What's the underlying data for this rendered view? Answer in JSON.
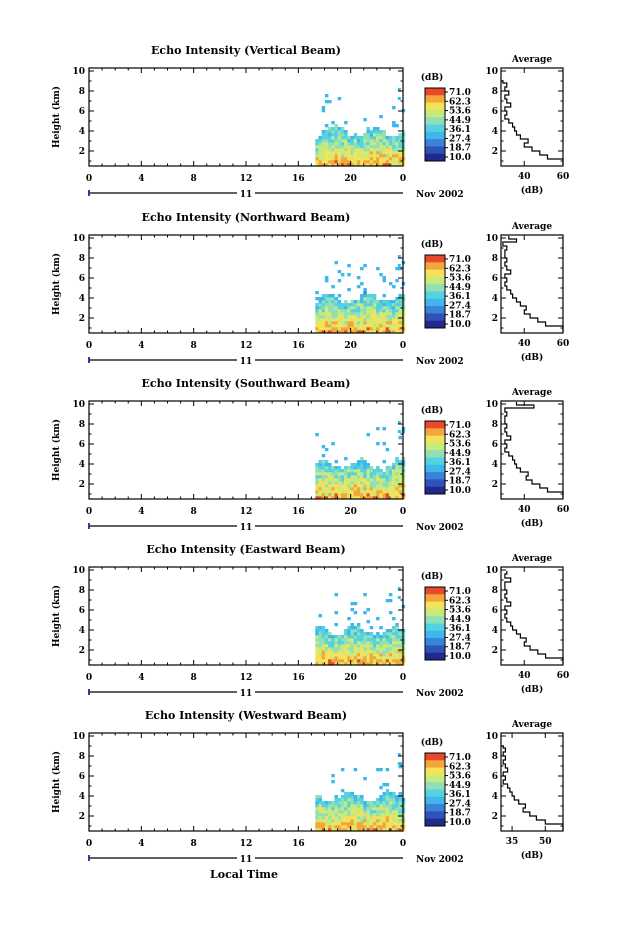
{
  "chart_data": [
    {
      "type": "heatmap",
      "title": "Echo Intensity (Vertical Beam)",
      "ylabel": "Height (km)",
      "x_ticks": [
        "0",
        "4",
        "8",
        "12",
        "16",
        "20",
        "0"
      ],
      "x_range": [
        0,
        24
      ],
      "y_ticks": [
        "2",
        "4",
        "6",
        "8",
        "10"
      ],
      "y_range": [
        0.5,
        10.3
      ],
      "date_label": "11",
      "date_right": "Nov 2002",
      "data_start_hour": 17.3,
      "colorbar": {
        "unit": "(dB)",
        "ticks": [
          "71.0",
          "62.3",
          "53.6",
          "44.9",
          "36.1",
          "27.4",
          "18.7",
          "10.0"
        ]
      },
      "profile": {
        "title": "Average",
        "xlabel": "(dB)",
        "x_ticks": [
          "40",
          "60"
        ],
        "x_range": [
          28,
          60
        ],
        "y_ticks": [
          "2",
          "4",
          "6",
          "8",
          "10"
        ],
        "heights": [
          0.6,
          1.2,
          1.6,
          2.0,
          2.4,
          2.8,
          3.2,
          3.6,
          4.0,
          4.4,
          4.8,
          5.2,
          5.6,
          6.0,
          6.4,
          6.8,
          7.2,
          7.6,
          8.0,
          8.4,
          8.8
        ],
        "values": [
          60,
          52,
          48,
          44,
          40,
          42,
          38,
          36,
          35,
          34,
          32,
          30,
          31,
          30,
          33,
          31,
          30,
          32,
          30,
          31,
          29
        ]
      }
    },
    {
      "type": "heatmap",
      "title": "Echo Intensity (Northward Beam)",
      "ylabel": "Height (km)",
      "x_ticks": [
        "0",
        "4",
        "8",
        "12",
        "16",
        "20",
        "0"
      ],
      "x_range": [
        0,
        24
      ],
      "y_ticks": [
        "2",
        "4",
        "6",
        "8",
        "10"
      ],
      "y_range": [
        0.5,
        10.3
      ],
      "date_label": "11",
      "date_right": "Nov 2002",
      "data_start_hour": 17.3,
      "colorbar": {
        "unit": "(dB)",
        "ticks": [
          "71.0",
          "62.3",
          "53.6",
          "44.9",
          "36.1",
          "27.4",
          "18.7",
          "10.0"
        ]
      },
      "profile": {
        "title": "Average",
        "xlabel": "(dB)",
        "x_ticks": [
          "40",
          "60"
        ],
        "x_range": [
          28,
          60
        ],
        "y_ticks": [
          "2",
          "4",
          "6",
          "8",
          "10"
        ],
        "heights": [
          0.6,
          1.2,
          1.6,
          2.0,
          2.4,
          2.8,
          3.2,
          3.6,
          4.0,
          4.4,
          4.8,
          5.2,
          5.6,
          6.0,
          6.4,
          6.8,
          7.2,
          7.6,
          8.0,
          8.4,
          8.8,
          9.2,
          9.6,
          9.9
        ],
        "values": [
          60,
          51,
          47,
          43,
          40,
          41,
          38,
          36,
          34,
          33,
          31,
          30,
          31,
          30,
          33,
          31,
          30,
          31,
          30,
          30,
          31,
          29,
          36,
          32
        ]
      }
    },
    {
      "type": "heatmap",
      "title": "Echo Intensity (Southward Beam)",
      "ylabel": "Height (km)",
      "x_ticks": [
        "0",
        "4",
        "8",
        "12",
        "16",
        "20",
        "0"
      ],
      "x_range": [
        0,
        24
      ],
      "y_ticks": [
        "2",
        "4",
        "6",
        "8",
        "10"
      ],
      "y_range": [
        0.5,
        10.3
      ],
      "date_label": "11",
      "date_right": "Nov 2002",
      "data_start_hour": 17.3,
      "colorbar": {
        "unit": "(dB)",
        "ticks": [
          "71.0",
          "62.3",
          "53.6",
          "44.9",
          "36.1",
          "27.4",
          "18.7",
          "10.0"
        ]
      },
      "profile": {
        "title": "Average",
        "xlabel": "(dB)",
        "x_ticks": [
          "40",
          "60"
        ],
        "x_range": [
          28,
          60
        ],
        "y_ticks": [
          "2",
          "4",
          "6",
          "8",
          "10"
        ],
        "heights": [
          0.6,
          1.2,
          1.6,
          2.0,
          2.4,
          2.8,
          3.2,
          3.6,
          4.0,
          4.4,
          4.8,
          5.2,
          5.6,
          6.0,
          6.4,
          6.8,
          7.2,
          7.6,
          8.0,
          8.4,
          8.8,
          9.2,
          9.6,
          9.9
        ],
        "values": [
          60,
          52,
          48,
          44,
          41,
          42,
          38,
          36,
          35,
          34,
          32,
          30,
          31,
          30,
          33,
          31,
          30,
          31,
          30,
          30,
          31,
          30,
          45,
          36
        ]
      }
    },
    {
      "type": "heatmap",
      "title": "Echo Intensity (Eastward Beam)",
      "ylabel": "Height (km)",
      "x_ticks": [
        "0",
        "4",
        "8",
        "12",
        "16",
        "20",
        "0"
      ],
      "x_range": [
        0,
        24
      ],
      "y_ticks": [
        "2",
        "4",
        "6",
        "8",
        "10"
      ],
      "y_range": [
        0.5,
        10.3
      ],
      "date_label": "11",
      "date_right": "Nov 2002",
      "data_start_hour": 17.3,
      "colorbar": {
        "unit": "(dB)",
        "ticks": [
          "71.0",
          "62.3",
          "53.6",
          "44.9",
          "36.1",
          "27.4",
          "18.7",
          "10.0"
        ]
      },
      "profile": {
        "title": "Average",
        "xlabel": "(dB)",
        "x_ticks": [
          "40",
          "60"
        ],
        "x_range": [
          28,
          60
        ],
        "y_ticks": [
          "2",
          "4",
          "6",
          "8",
          "10"
        ],
        "heights": [
          0.6,
          1.2,
          1.6,
          2.0,
          2.4,
          2.8,
          3.2,
          3.6,
          4.0,
          4.4,
          4.8,
          5.2,
          5.6,
          6.0,
          6.4,
          6.8,
          7.2,
          7.6,
          8.0,
          8.4,
          8.8,
          9.2,
          9.6
        ],
        "values": [
          60,
          51,
          47,
          43,
          40,
          41,
          38,
          36,
          34,
          33,
          31,
          30,
          31,
          30,
          33,
          31,
          30,
          31,
          30,
          30,
          33,
          30,
          31
        ]
      }
    },
    {
      "type": "heatmap",
      "title": "Echo Intensity (Westward Beam)",
      "ylabel": "Height (km)",
      "x_ticks": [
        "0",
        "4",
        "8",
        "12",
        "16",
        "20",
        "0"
      ],
      "x_range": [
        0,
        24
      ],
      "y_ticks": [
        "2",
        "4",
        "6",
        "8",
        "10"
      ],
      "y_range": [
        0.5,
        10.3
      ],
      "date_label": "11",
      "date_right": "Nov 2002",
      "data_start_hour": 17.3,
      "colorbar": {
        "unit": "(dB)",
        "ticks": [
          "71.0",
          "62.3",
          "53.6",
          "44.9",
          "36.1",
          "27.4",
          "18.7",
          "10.0"
        ]
      },
      "profile": {
        "title": "Average",
        "xlabel": "(dB)",
        "x_ticks": [
          "35",
          "50"
        ],
        "x_range": [
          30,
          58
        ],
        "y_ticks": [
          "2",
          "4",
          "6",
          "8",
          "10"
        ],
        "heights": [
          0.6,
          1.2,
          1.6,
          2.0,
          2.4,
          2.8,
          3.2,
          3.6,
          4.0,
          4.4,
          4.8,
          5.2,
          5.6,
          6.0,
          6.4,
          6.8,
          7.2,
          7.6,
          8.0,
          8.4,
          8.8
        ],
        "values": [
          58,
          50,
          46,
          43,
          40,
          41,
          38,
          36,
          35,
          34,
          33,
          31,
          32,
          31,
          33,
          32,
          31,
          32,
          31,
          32,
          31
        ]
      }
    }
  ],
  "footer": {
    "xlabel": "Local Time"
  }
}
